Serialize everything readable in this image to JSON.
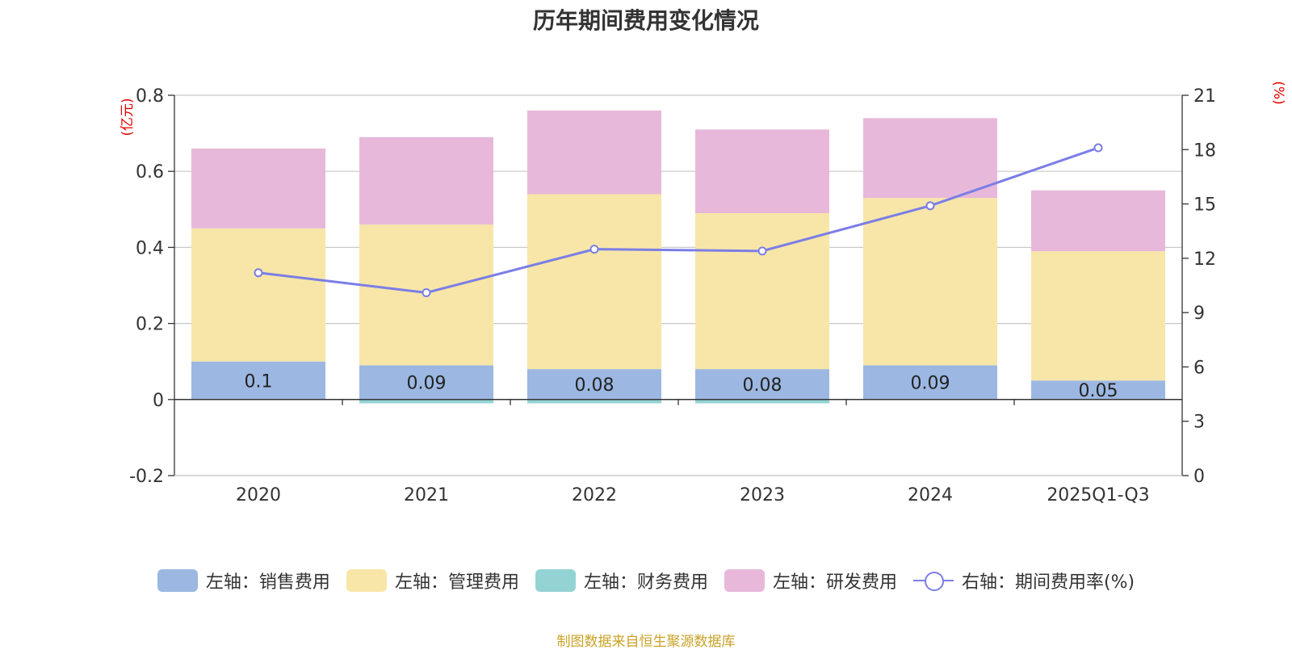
{
  "colors": {
    "sales": "#9cb8e2",
    "admin": "#f7e6a8",
    "finance": "#94d3d4",
    "rd": "#e7b8d9",
    "rate": "#7b7ee6",
    "axis_unit": "#e60000",
    "source": "#c9a227"
  },
  "chart_data": {
    "type": "bar",
    "title": "历年期间费用变化情况",
    "categories": [
      "2020",
      "2021",
      "2022",
      "2023",
      "2024",
      "2025Q1-Q3"
    ],
    "left_axis": {
      "unit_label": "(亿元)",
      "ylim": [
        -0.2,
        0.8
      ],
      "ticks": [
        -0.2,
        0,
        0.2,
        0.4,
        0.6,
        0.8
      ],
      "tick_labels": [
        "-0.2",
        "0",
        "0.2",
        "0.4",
        "0.6",
        "0.8"
      ]
    },
    "right_axis": {
      "unit_label": "(%)",
      "ylim": [
        0,
        21
      ],
      "ticks": [
        0,
        3,
        6,
        9,
        12,
        15,
        18,
        21
      ],
      "tick_labels": [
        "0",
        "3",
        "6",
        "9",
        "12",
        "15",
        "18",
        "21"
      ]
    },
    "series": [
      {
        "key": "sales",
        "name": "左轴：销售费用",
        "type": "bar",
        "axis": "left",
        "values": [
          0.1,
          0.09,
          0.08,
          0.08,
          0.09,
          0.05
        ],
        "labels": [
          "0.1",
          "0.09",
          "0.08",
          "0.08",
          "0.09",
          "0.05"
        ]
      },
      {
        "key": "admin",
        "name": "左轴：管理费用",
        "type": "bar",
        "axis": "left",
        "values": [
          0.35,
          0.37,
          0.46,
          0.41,
          0.44,
          0.34
        ]
      },
      {
        "key": "finance",
        "name": "左轴：财务费用",
        "type": "bar",
        "axis": "left",
        "values": [
          0.0,
          -0.01,
          -0.01,
          -0.01,
          0.0,
          0.0
        ]
      },
      {
        "key": "rd",
        "name": "左轴：研发费用",
        "type": "bar",
        "axis": "left",
        "values": [
          0.21,
          0.23,
          0.22,
          0.22,
          0.21,
          0.16
        ]
      },
      {
        "key": "rate",
        "name": "右轴：期间费用率(%)",
        "type": "line",
        "axis": "right",
        "values": [
          11.2,
          10.1,
          12.5,
          12.4,
          14.9,
          18.1
        ]
      }
    ],
    "legend_position": "bottom"
  },
  "source_note": "制图数据来自恒生聚源数据库"
}
